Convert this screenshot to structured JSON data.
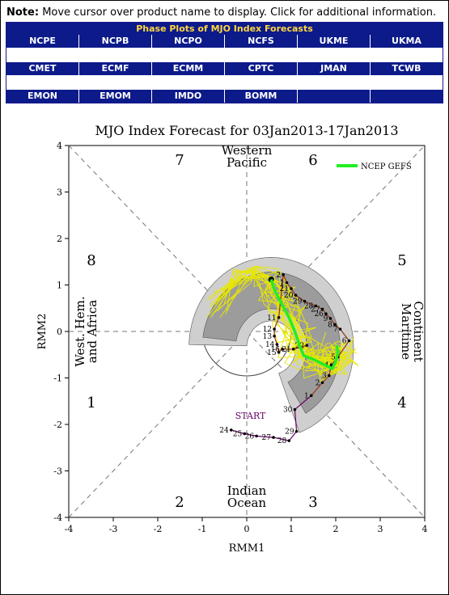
{
  "note": {
    "label": "Note:",
    "text": "Move cursor over product name to display. Click for additional information."
  },
  "table": {
    "title": "Phase Plots of MJO Index Forecasts",
    "rows": [
      [
        "NCPE",
        "NCPB",
        "NCPO",
        "NCFS",
        "UKME",
        "UKMA"
      ],
      [
        "CMET",
        "ECMF",
        "ECMM",
        "CPTC",
        "JMAN",
        "TCWB"
      ],
      [
        "EMON",
        "EMOM",
        "IMDO",
        "BOMM",
        "",
        ""
      ]
    ]
  },
  "colors": {
    "header_bg": "#0c1a8a",
    "header_title": "#ffd640",
    "gefs_line": "#22ee22",
    "members": "#e8e800",
    "observed_start": "#660066",
    "observed_end": "#993311"
  },
  "chart_data": {
    "type": "line",
    "title": "MJO Index Forecast for 03Jan2013-17Jan2013",
    "xlabel": "RMM1",
    "ylabel": "RMM2",
    "xlim": [
      -4,
      4
    ],
    "ylim": [
      -4,
      4
    ],
    "xticks": [
      "-4",
      "-3",
      "-2",
      "-1",
      "0",
      "1",
      "2",
      "3",
      "4"
    ],
    "yticks": [
      "-4",
      "-3",
      "-2",
      "-1",
      "0",
      "1",
      "2",
      "3",
      "4"
    ],
    "legend": "NCEP GEFS",
    "phase_labels": [
      "1",
      "2",
      "3",
      "4",
      "5",
      "6",
      "7",
      "8"
    ],
    "region_labels": {
      "top": [
        "Western",
        "Pacific"
      ],
      "bottom": [
        "Indian",
        "Ocean"
      ],
      "left": [
        "West. Hem.",
        "and Africa"
      ],
      "right": [
        "Maritime",
        "Continent"
      ]
    },
    "start_label": "START",
    "observed": {
      "x": [
        -0.35,
        -0.05,
        0.22,
        0.6,
        0.95,
        1.12,
        1.08,
        1.45,
        1.7,
        1.85,
        1.9,
        2.05,
        2.3,
        2.1,
        1.98,
        1.88,
        1.78,
        1.7,
        1.55,
        1.3,
        1.1,
        1.0,
        0.9,
        0.82,
        0.72,
        0.62,
        0.62,
        0.68,
        0.72,
        0.8,
        1.05,
        1.35
      ],
      "y": [
        -2.12,
        -2.2,
        -2.25,
        -2.28,
        -2.35,
        -2.15,
        -1.68,
        -1.38,
        -1.1,
        -0.95,
        -0.72,
        -0.55,
        -0.2,
        0.05,
        0.15,
        0.28,
        0.38,
        0.48,
        0.55,
        0.65,
        0.78,
        0.92,
        1.05,
        1.22,
        0.3,
        0.05,
        -0.1,
        -0.28,
        -0.45,
        -0.38,
        -0.38,
        -0.3
      ],
      "labels": [
        "24",
        "25",
        "26",
        "27",
        "28",
        "29",
        "30",
        "1",
        "2",
        "3",
        "4",
        "5",
        "6",
        "7",
        "8",
        "9",
        "26",
        "27",
        "28",
        "29",
        "20",
        "21",
        "1",
        "2",
        "11",
        "12",
        "13",
        "14",
        "15",
        "16",
        "21",
        "22"
      ]
    },
    "ensemble_mean": {
      "x": [
        0.55,
        0.62,
        0.78,
        0.95,
        1.08,
        1.18,
        1.28,
        1.5,
        1.75,
        1.92,
        2.0,
        2.05,
        2.02
      ],
      "y": [
        1.12,
        0.9,
        0.6,
        0.3,
        0.0,
        -0.28,
        -0.52,
        -0.6,
        -0.72,
        -0.8,
        -0.65,
        -0.45,
        -0.3
      ]
    },
    "members_count": 20
  }
}
